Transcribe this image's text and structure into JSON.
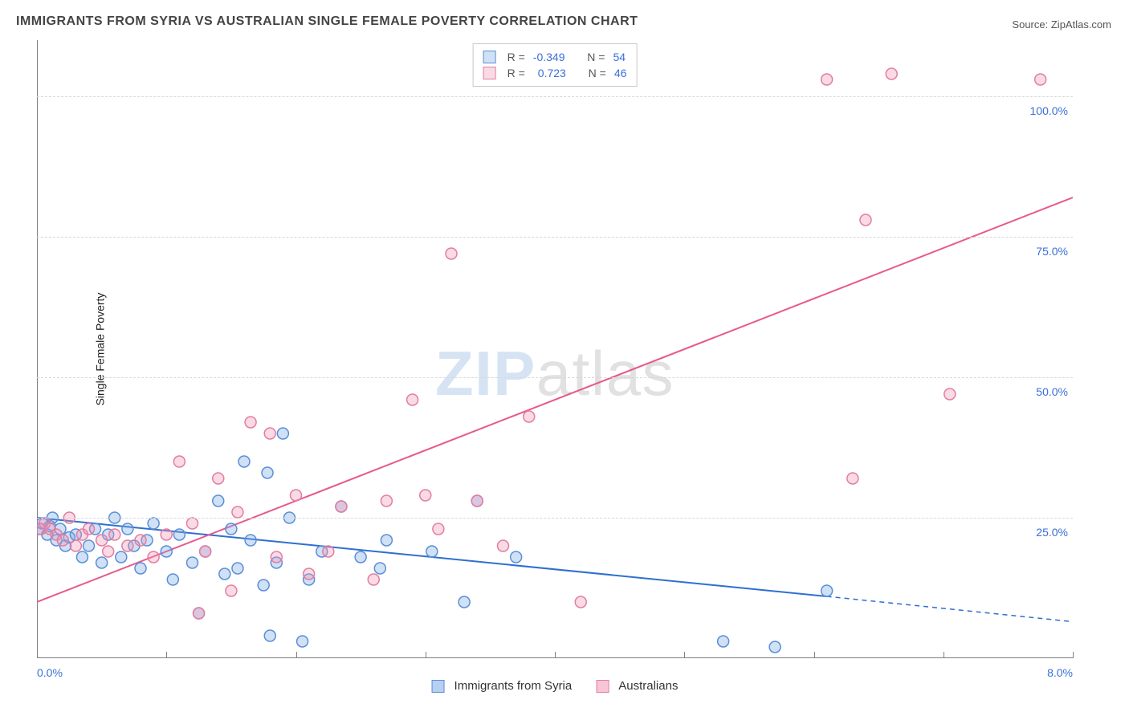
{
  "title": "IMMIGRANTS FROM SYRIA VS AUSTRALIAN SINGLE FEMALE POVERTY CORRELATION CHART",
  "source_label": "Source:",
  "source_name": "ZipAtlas.com",
  "y_axis_label": "Single Female Poverty",
  "watermark_a": "ZIP",
  "watermark_b": "atlas",
  "chart": {
    "type": "scatter",
    "xlim": [
      0,
      8.0
    ],
    "ylim": [
      0,
      110
    ],
    "x_ticks": [
      0.0,
      1.0,
      2.0,
      3.0,
      4.0,
      5.0,
      6.0,
      7.0,
      8.0
    ],
    "x_tick_labels_shown": {
      "0": "0.0%",
      "8.0": "8.0%"
    },
    "y_ticks": [
      25.0,
      50.0,
      75.0,
      100.0
    ],
    "y_tick_labels": [
      "25.0%",
      "50.0%",
      "75.0%",
      "100.0%"
    ],
    "background_color": "#ffffff",
    "grid_color": "#d8d8d8",
    "axis_color": "#808080",
    "tick_label_color": "#3a6fd8",
    "marker_radius": 7,
    "marker_stroke_width": 1.5,
    "line_width": 2
  },
  "series": [
    {
      "name": "Immigrants from Syria",
      "color_fill": "rgba(120,170,230,0.35)",
      "color_stroke": "#5a8fd6",
      "line_color": "#2f6fd0",
      "r_label": "R =",
      "r_value": "-0.349",
      "n_label": "N =",
      "n_value": "54",
      "trend": {
        "x1": 0.0,
        "y1": 25.0,
        "x2": 6.1,
        "y2": 11.0,
        "x2_dash": 8.0,
        "y2_dash": 6.5
      },
      "points": [
        [
          0.02,
          23
        ],
        [
          0.04,
          24
        ],
        [
          0.08,
          22
        ],
        [
          0.1,
          23.5
        ],
        [
          0.12,
          25
        ],
        [
          0.15,
          21
        ],
        [
          0.18,
          23
        ],
        [
          0.22,
          20
        ],
        [
          0.25,
          21.5
        ],
        [
          0.3,
          22
        ],
        [
          0.35,
          18
        ],
        [
          0.4,
          20
        ],
        [
          0.45,
          23
        ],
        [
          0.5,
          17
        ],
        [
          0.55,
          22
        ],
        [
          0.6,
          25
        ],
        [
          0.65,
          18
        ],
        [
          0.7,
          23
        ],
        [
          0.75,
          20
        ],
        [
          0.8,
          16
        ],
        [
          0.85,
          21
        ],
        [
          0.9,
          24
        ],
        [
          1.0,
          19
        ],
        [
          1.05,
          14
        ],
        [
          1.1,
          22
        ],
        [
          1.2,
          17
        ],
        [
          1.25,
          8
        ],
        [
          1.3,
          19
        ],
        [
          1.4,
          28
        ],
        [
          1.45,
          15
        ],
        [
          1.5,
          23
        ],
        [
          1.55,
          16
        ],
        [
          1.6,
          35
        ],
        [
          1.65,
          21
        ],
        [
          1.75,
          13
        ],
        [
          1.78,
          33
        ],
        [
          1.8,
          4
        ],
        [
          1.85,
          17
        ],
        [
          1.9,
          40
        ],
        [
          1.95,
          25
        ],
        [
          2.05,
          3
        ],
        [
          2.1,
          14
        ],
        [
          2.2,
          19
        ],
        [
          2.35,
          27
        ],
        [
          2.5,
          18
        ],
        [
          2.65,
          16
        ],
        [
          2.7,
          21
        ],
        [
          3.05,
          19
        ],
        [
          3.3,
          10
        ],
        [
          3.4,
          28
        ],
        [
          3.7,
          18
        ],
        [
          5.3,
          3
        ],
        [
          5.7,
          2
        ],
        [
          6.1,
          12
        ]
      ]
    },
    {
      "name": "Australians",
      "color_fill": "rgba(240,150,180,0.35)",
      "color_stroke": "#e37da1",
      "line_color": "#e75a8c",
      "r_label": "R =",
      "r_value": "0.723",
      "n_label": "N =",
      "n_value": "46",
      "trend": {
        "x1": 0.0,
        "y1": 10.0,
        "x2": 8.0,
        "y2": 82.0
      },
      "points": [
        [
          0.03,
          23
        ],
        [
          0.06,
          24
        ],
        [
          0.1,
          23
        ],
        [
          0.15,
          22
        ],
        [
          0.2,
          21
        ],
        [
          0.25,
          25
        ],
        [
          0.3,
          20
        ],
        [
          0.35,
          22
        ],
        [
          0.4,
          23
        ],
        [
          0.5,
          21
        ],
        [
          0.55,
          19
        ],
        [
          0.6,
          22
        ],
        [
          0.7,
          20
        ],
        [
          0.8,
          21
        ],
        [
          0.9,
          18
        ],
        [
          1.0,
          22
        ],
        [
          1.1,
          35
        ],
        [
          1.2,
          24
        ],
        [
          1.25,
          8
        ],
        [
          1.3,
          19
        ],
        [
          1.4,
          32
        ],
        [
          1.5,
          12
        ],
        [
          1.55,
          26
        ],
        [
          1.65,
          42
        ],
        [
          1.8,
          40
        ],
        [
          1.85,
          18
        ],
        [
          2.0,
          29
        ],
        [
          2.1,
          15
        ],
        [
          2.25,
          19
        ],
        [
          2.35,
          27
        ],
        [
          2.6,
          14
        ],
        [
          2.7,
          28
        ],
        [
          2.9,
          46
        ],
        [
          3.0,
          29
        ],
        [
          3.1,
          23
        ],
        [
          3.2,
          72
        ],
        [
          3.4,
          28
        ],
        [
          3.6,
          20
        ],
        [
          3.8,
          43
        ],
        [
          4.2,
          10
        ],
        [
          6.1,
          103
        ],
        [
          6.3,
          32
        ],
        [
          6.4,
          78
        ],
        [
          6.6,
          104
        ],
        [
          7.05,
          47
        ],
        [
          7.75,
          103
        ]
      ]
    }
  ],
  "bottom_legend": [
    {
      "label": "Immigrants from Syria",
      "fill": "rgba(120,170,230,0.55)",
      "stroke": "#5a8fd6"
    },
    {
      "label": "Australians",
      "fill": "rgba(240,150,180,0.55)",
      "stroke": "#e37da1"
    }
  ]
}
